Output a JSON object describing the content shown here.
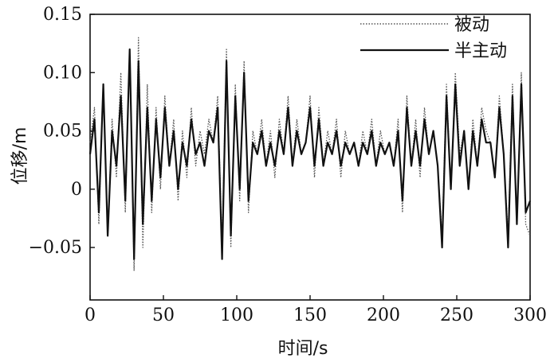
{
  "chart_data": {
    "type": "line",
    "title": "",
    "xlabel": "时间/s",
    "ylabel": "位移/m",
    "xlim": [
      0,
      300
    ],
    "ylim": [
      -0.095,
      0.15
    ],
    "xticks": [
      0,
      50,
      100,
      150,
      200,
      250,
      300
    ],
    "xtick_labels": [
      "0",
      "50",
      "100",
      "150",
      "200",
      "250",
      "300"
    ],
    "yticks": [
      -0.05,
      0,
      0.05,
      0.1,
      0.15
    ],
    "ytick_labels": [
      "−0.05",
      "0",
      "0.05",
      "0.10",
      "0.15"
    ],
    "grid": false,
    "legend_position": "top-right",
    "series": [
      {
        "name": "被动",
        "style": "dotted",
        "color": "#555555",
        "x": [
          0,
          3,
          6,
          9,
          12,
          15,
          18,
          21,
          24,
          27,
          30,
          33,
          36,
          39,
          42,
          45,
          48,
          51,
          54,
          57,
          60,
          63,
          66,
          69,
          72,
          75,
          78,
          81,
          84,
          87,
          90,
          93,
          96,
          99,
          102,
          105,
          108,
          111,
          114,
          117,
          120,
          123,
          126,
          129,
          132,
          135,
          138,
          141,
          144,
          147,
          150,
          153,
          156,
          159,
          162,
          165,
          168,
          171,
          174,
          177,
          180,
          183,
          186,
          189,
          192,
          195,
          198,
          201,
          204,
          207,
          210,
          213,
          216,
          219,
          222,
          225,
          228,
          231,
          234,
          237,
          240,
          243,
          246,
          249,
          252,
          255,
          258,
          261,
          264,
          267,
          270,
          273,
          276,
          279,
          282,
          285,
          288,
          291,
          294,
          297,
          300
        ],
        "y": [
          0.04,
          0.07,
          -0.03,
          0.09,
          -0.04,
          0.06,
          0.01,
          0.1,
          -0.02,
          0.12,
          -0.07,
          0.13,
          -0.05,
          0.09,
          -0.02,
          0.07,
          0.0,
          0.08,
          0.02,
          0.06,
          -0.01,
          0.05,
          0.01,
          0.07,
          0.02,
          0.05,
          0.03,
          0.06,
          0.04,
          0.08,
          -0.05,
          0.12,
          -0.05,
          0.09,
          -0.01,
          0.11,
          -0.02,
          0.05,
          0.03,
          0.06,
          0.02,
          0.05,
          0.01,
          0.06,
          0.03,
          0.08,
          0.02,
          0.06,
          0.03,
          0.04,
          0.08,
          0.01,
          0.07,
          0.02,
          0.05,
          0.03,
          0.06,
          0.01,
          0.05,
          0.03,
          0.04,
          0.02,
          0.05,
          0.03,
          0.06,
          0.02,
          0.05,
          0.03,
          0.04,
          0.02,
          0.06,
          -0.02,
          0.08,
          0.02,
          0.06,
          0.01,
          0.07,
          0.03,
          0.05,
          0.02,
          -0.04,
          0.09,
          0.0,
          0.1,
          0.03,
          0.05,
          0.0,
          0.06,
          0.02,
          0.07,
          0.05,
          0.04,
          0.01,
          0.08,
          0.03,
          -0.04,
          0.09,
          -0.03,
          0.1,
          -0.03,
          -0.04
        ]
      },
      {
        "name": "半主动",
        "style": "solid",
        "color": "#111111",
        "x": [
          0,
          3,
          6,
          9,
          12,
          15,
          18,
          21,
          24,
          27,
          30,
          33,
          36,
          39,
          42,
          45,
          48,
          51,
          54,
          57,
          60,
          63,
          66,
          69,
          72,
          75,
          78,
          81,
          84,
          87,
          90,
          93,
          96,
          99,
          102,
          105,
          108,
          111,
          114,
          117,
          120,
          123,
          126,
          129,
          132,
          135,
          138,
          141,
          144,
          147,
          150,
          153,
          156,
          159,
          162,
          165,
          168,
          171,
          174,
          177,
          180,
          183,
          186,
          189,
          192,
          195,
          198,
          201,
          204,
          207,
          210,
          213,
          216,
          219,
          222,
          225,
          228,
          231,
          234,
          237,
          240,
          243,
          246,
          249,
          252,
          255,
          258,
          261,
          264,
          267,
          270,
          273,
          276,
          279,
          282,
          285,
          288,
          291,
          294,
          297,
          300
        ],
        "y": [
          0.03,
          0.06,
          -0.02,
          0.09,
          -0.04,
          0.05,
          0.02,
          0.08,
          -0.01,
          0.12,
          -0.06,
          0.11,
          -0.03,
          0.07,
          -0.01,
          0.06,
          0.01,
          0.07,
          0.02,
          0.05,
          0.0,
          0.04,
          0.02,
          0.06,
          0.03,
          0.04,
          0.02,
          0.05,
          0.04,
          0.07,
          -0.06,
          0.11,
          -0.04,
          0.08,
          0.0,
          0.1,
          -0.01,
          0.04,
          0.03,
          0.05,
          0.02,
          0.04,
          0.02,
          0.05,
          0.03,
          0.07,
          0.02,
          0.05,
          0.03,
          0.04,
          0.07,
          0.02,
          0.06,
          0.02,
          0.04,
          0.03,
          0.05,
          0.02,
          0.04,
          0.03,
          0.04,
          0.02,
          0.04,
          0.03,
          0.05,
          0.02,
          0.04,
          0.03,
          0.04,
          0.02,
          0.05,
          -0.01,
          0.07,
          0.02,
          0.05,
          0.02,
          0.06,
          0.03,
          0.05,
          0.02,
          -0.05,
          0.08,
          0.0,
          0.09,
          0.02,
          0.05,
          0.0,
          0.05,
          0.02,
          0.06,
          0.04,
          0.04,
          0.01,
          0.07,
          0.03,
          -0.05,
          0.08,
          -0.03,
          0.09,
          -0.02,
          -0.01
        ]
      }
    ]
  }
}
